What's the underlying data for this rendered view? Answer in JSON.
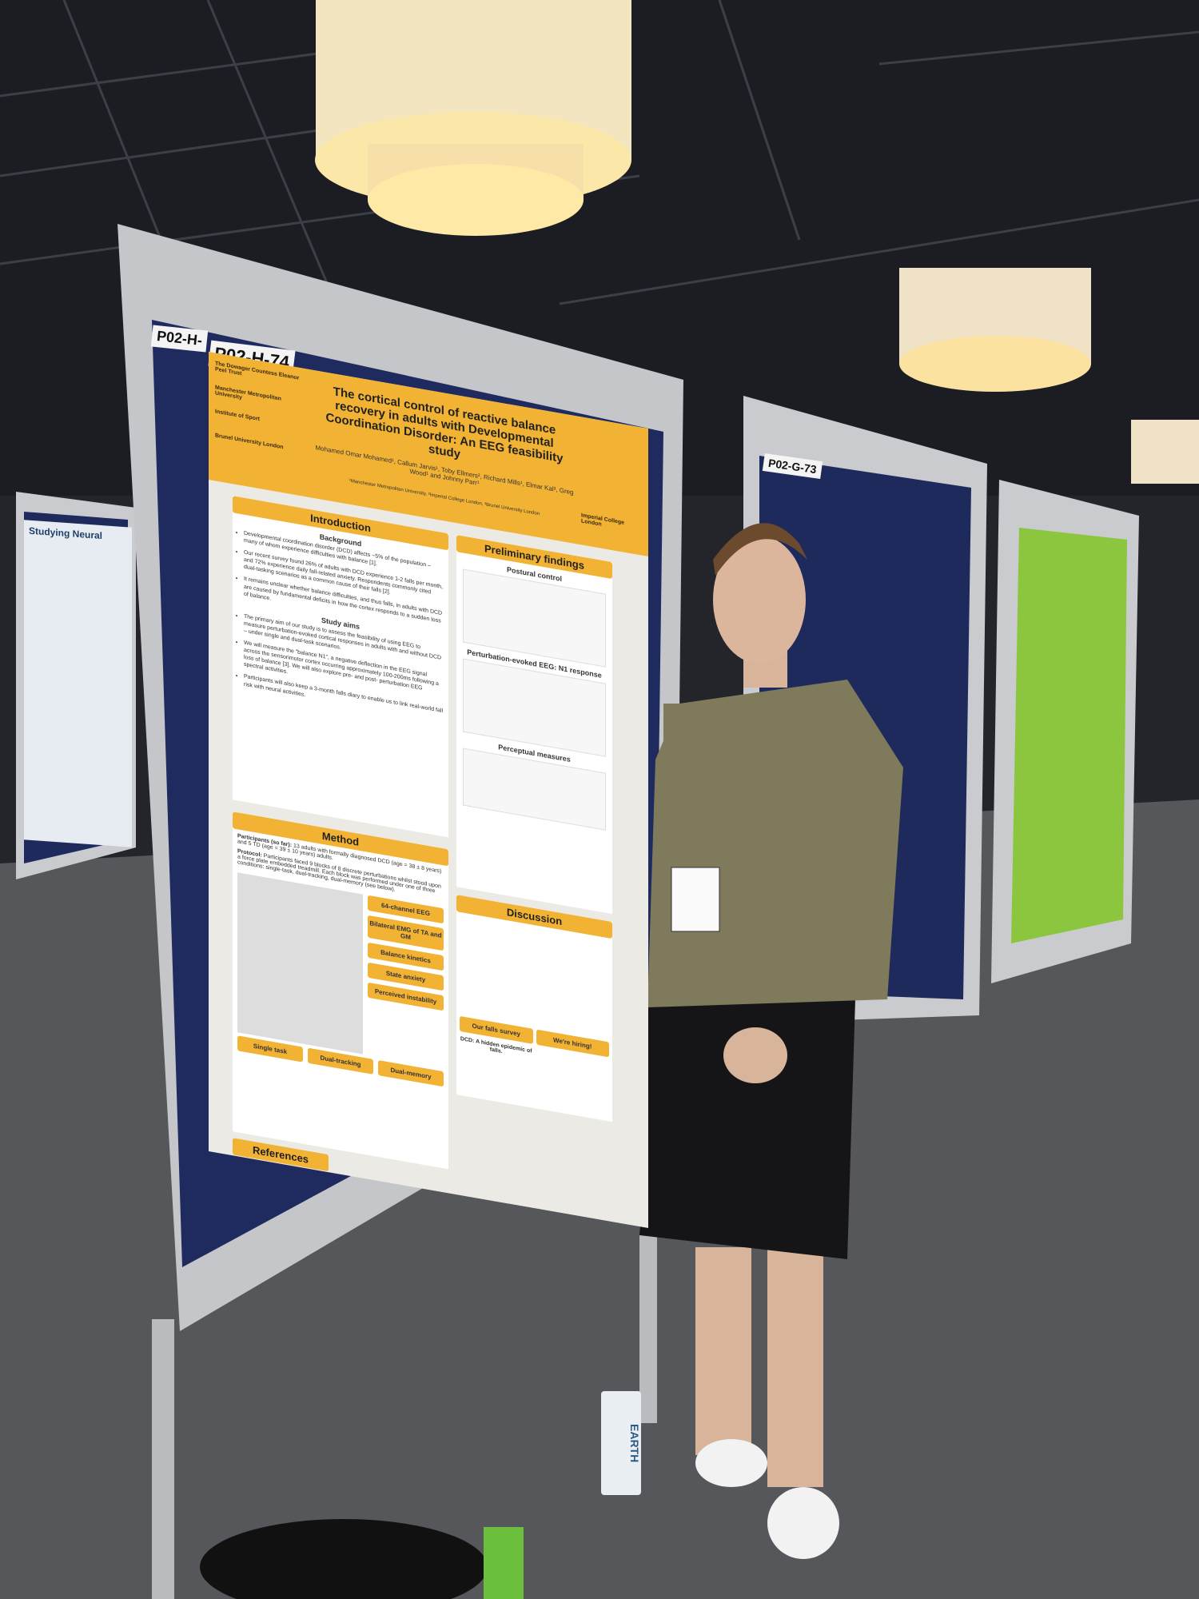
{
  "labels": {
    "board_left": "P02-H-",
    "board_main": "P02-H-74",
    "board_right": "P02-G-73"
  },
  "poster": {
    "title": "The cortical control of reactive balance recovery in adults with Developmental Coordination Disorder: An EEG feasibility study",
    "authors": "Mohamed Omar Mohamed¹, Callum Jarvis¹, Toby Ellmers², Richard Mills¹, Elmar Kal³, Greg Wood¹ and Johnny Parr¹",
    "affiliations": "¹Manchester Metropolitan University, ²Imperial College London, ³Brunel University London",
    "logos": [
      "The Dowager Countess Eleanor Peel Trust",
      "Manchester Metropolitan University",
      "Institute of Sport",
      "Brunel University London",
      "Imperial College London"
    ],
    "introduction": {
      "heading": "Introduction",
      "background_heading": "Background",
      "background": [
        "Developmental coordination disorder (DCD) affects ~5% of the population – many of whom experience difficulties with balance [1].",
        "Our recent survey found 26% of adults with DCD experience 1-2 falls per month, and 72% experience daily fall-related anxiety. Respondents commonly cited dual-tasking scenarios as a common cause of their falls [2].",
        "It remains unclear whether balance difficulties, and thus falls, in adults with DCD are caused by fundamental deficits in how the cortex responds to a sudden loss of balance."
      ],
      "aims_heading": "Study aims",
      "aims": [
        "The primary aim of our study is to assess the feasibility of using EEG to measure perturbation-evoked cortical responses in adults with and without DCD – under single and dual-task scenarios.",
        "We will measure the “balance N1”, a negative deflection in the EEG signal across the sensorimotor cortex occurring approximately 100-200ms following a loss of balance [3]. We will also explore pre- and post- perturbation EEG spectral activities.",
        "Participants will also keep a 3-month falls diary to enable us to link real-world fall risk with neural activities."
      ]
    },
    "method": {
      "heading": "Method",
      "participants_label": "Participants (so far):",
      "participants": "13 adults with formally diagnosed DCD (age = 38 ± 8 years) and 5 TD (age = 39 ± 10 years) adults.",
      "protocol_label": "Protocol:",
      "protocol": "Participants faced 9 blocks of 8 discrete perturbations whilst stood upon a force plate embedded treadmill. Each block was performed under one of three conditions: single-task, dual-tracking, dual-memory (see below).",
      "measures": [
        "64-channel EEG",
        "Bilateral EMG of TA and GM",
        "Balance kinetics",
        "State anxiety",
        "Perceived instability"
      ],
      "conditions": [
        "Single task",
        "Dual-tracking",
        "Dual-memory"
      ]
    },
    "references_heading": "References",
    "findings": {
      "heading": "Preliminary findings",
      "panels": [
        "Postural control",
        "Perturbation-evoked EEG: N1 response",
        "Perceptual measures"
      ]
    },
    "discussion": {
      "heading": "Discussion",
      "falls_survey": "Our falls survey",
      "falls_text": "DCD: A hidden epidemic of falls.",
      "hiring": "We're hiring!"
    }
  },
  "left_poster": {
    "title": "Studying Neural"
  },
  "bottle": "EARTH"
}
